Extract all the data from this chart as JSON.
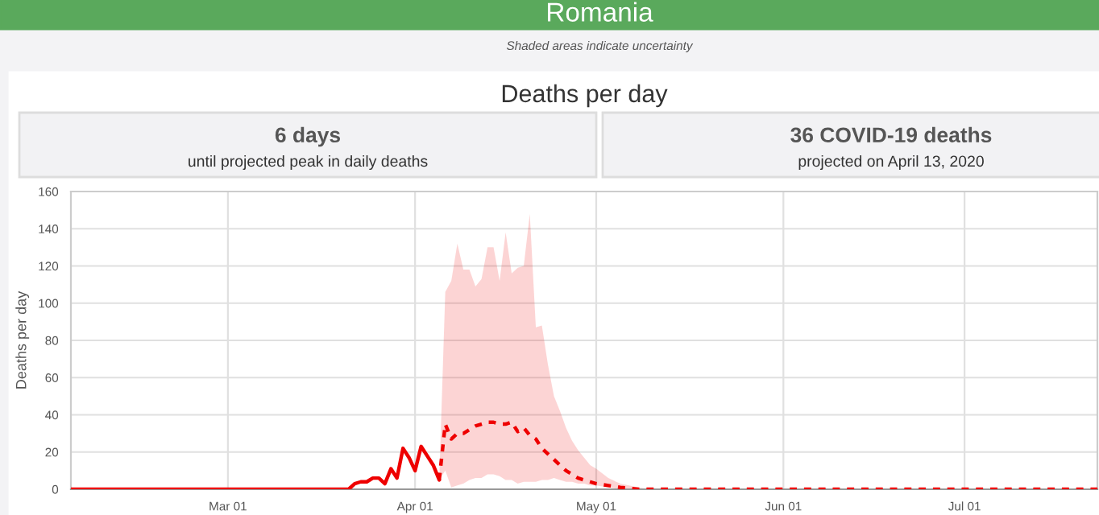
{
  "chart_data": {
    "type": "line",
    "title": "Deaths per day",
    "ylabel": "Deaths per day",
    "annotations": [
      "Romania",
      "Shaded areas indicate uncertainty",
      "6 days",
      "until projected peak in daily deaths",
      "36 COVID-19 deaths",
      "projected on April 13, 2020"
    ],
    "series": [
      {
        "color": "#ee0000",
        "line_style": "solid",
        "x": [
          "2020-02-04",
          "2020-03-20",
          "2020-03-21",
          "2020-03-22",
          "2020-03-23",
          "2020-03-24",
          "2020-03-25",
          "2020-03-26",
          "2020-03-27",
          "2020-03-28",
          "2020-03-29",
          "2020-03-30",
          "2020-03-31",
          "2020-04-01",
          "2020-04-02",
          "2020-04-03",
          "2020-04-04",
          "2020-04-05"
        ],
        "values": [
          0,
          0,
          0,
          3,
          4,
          4,
          6,
          6,
          3,
          11,
          6,
          22,
          17,
          10,
          23,
          18,
          13,
          5
        ]
      },
      {
        "color": "#ee0000",
        "line_style": "dashed",
        "x": [
          "2020-04-05",
          "2020-04-06",
          "2020-04-07",
          "2020-04-08",
          "2020-04-09",
          "2020-04-10",
          "2020-04-11",
          "2020-04-12",
          "2020-04-13",
          "2020-04-14",
          "2020-04-15",
          "2020-04-16",
          "2020-04-17",
          "2020-04-18",
          "2020-04-19",
          "2020-04-20",
          "2020-04-21",
          "2020-04-22",
          "2020-04-23",
          "2020-04-24",
          "2020-04-25",
          "2020-04-26",
          "2020-04-27",
          "2020-04-28",
          "2020-04-29",
          "2020-04-30",
          "2020-05-01",
          "2020-05-03",
          "2020-05-05",
          "2020-05-08",
          "2020-05-10",
          "2020-07-23"
        ],
        "values": [
          5,
          35,
          27,
          30,
          30,
          32,
          34,
          35,
          36,
          36,
          35,
          35,
          36,
          31,
          33,
          29,
          27,
          22,
          19,
          16,
          13,
          10,
          8,
          6,
          5,
          4,
          3,
          2,
          1,
          0,
          0,
          0
        ],
        "upper": [
          5,
          106,
          112,
          132,
          118,
          118,
          109,
          113,
          130,
          130,
          112,
          138,
          116,
          119,
          120,
          148,
          87,
          88,
          67,
          50,
          42,
          33,
          26,
          21,
          17,
          13,
          11,
          6,
          3,
          1,
          0,
          0
        ],
        "lower": [
          5,
          10,
          1,
          2,
          3,
          5,
          6,
          6,
          8,
          8,
          7,
          5,
          5,
          3,
          4,
          4,
          4,
          5,
          5,
          6,
          5,
          4,
          4,
          3,
          3,
          2,
          2,
          1,
          0,
          0,
          0,
          0
        ]
      }
    ],
    "xlim": [
      "2020-02-04",
      "2020-07-23"
    ],
    "xticks": [
      {
        "value": "2020-03-01",
        "label": "Mar 01"
      },
      {
        "value": "2020-04-01",
        "label": "Apr 01"
      },
      {
        "value": "2020-05-01",
        "label": "May 01"
      },
      {
        "value": "2020-06-01",
        "label": "Jun 01"
      },
      {
        "value": "2020-07-01",
        "label": "Jul 01"
      }
    ],
    "ylim": [
      0,
      160
    ],
    "yticks": [
      0,
      20,
      40,
      60,
      80,
      100,
      120,
      140,
      160
    ],
    "grid": true,
    "marker": "none",
    "legend": false
  }
}
